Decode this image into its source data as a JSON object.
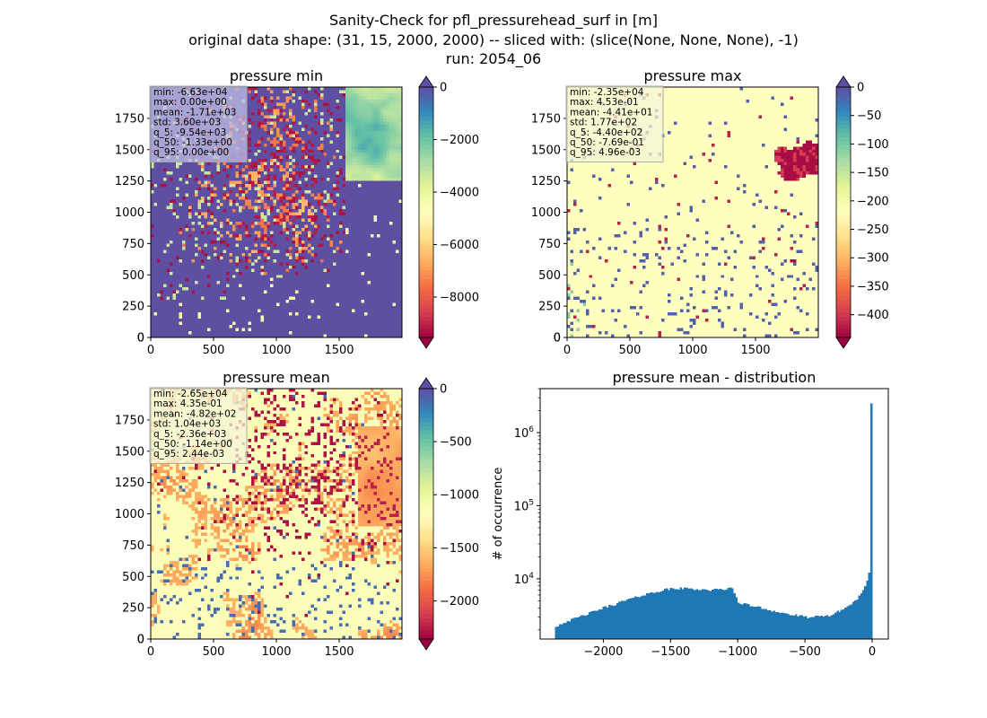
{
  "suptitle": [
    "Sanity-Check for pfl_pressurehead_surf in [m]",
    "original data shape: (31, 15, 2000, 2000) -- sliced with: (slice(None, None, None), -1)",
    "run: 2054_06"
  ],
  "chart_data": [
    {
      "type": "heatmap",
      "title": "pressure min",
      "xlim": [
        0,
        2000
      ],
      "ylim": [
        0,
        2000
      ],
      "xticks": [
        0,
        500,
        1000,
        1500
      ],
      "yticks": [
        0,
        250,
        500,
        750,
        1000,
        1250,
        1500,
        1750
      ],
      "colorbar": {
        "cmap": "Spectral",
        "vmin": -9540,
        "vmax": 0,
        "ticks": [
          0,
          -2000,
          -4000,
          -6000,
          -8000
        ],
        "tick_labels": [
          "0",
          "−2000",
          "−4000",
          "−6000",
          "−8000"
        ],
        "extend": "both"
      },
      "stats": [
        "min: -6.63e+04",
        "max: 0.00e+00",
        "mean: -1.71e+03",
        "std: 3.60e+03",
        "q_5: -9.54e+03",
        "q_50: -1.33e+00",
        "q_95: 0.00e+00"
      ],
      "stats_box_color": "#bfbfe6",
      "grid": false
    },
    {
      "type": "heatmap",
      "title": "pressure max",
      "xlim": [
        0,
        2000
      ],
      "ylim": [
        0,
        2000
      ],
      "xticks": [
        0,
        500,
        1000,
        1500
      ],
      "yticks": [
        0,
        250,
        500,
        750,
        1000,
        1250,
        1500,
        1750
      ],
      "colorbar": {
        "cmap": "Spectral",
        "vmin": -440,
        "vmax": 0,
        "ticks": [
          0,
          -50,
          -100,
          -150,
          -200,
          -250,
          -300,
          -350,
          -400
        ],
        "tick_labels": [
          "0",
          "−50",
          "−100",
          "−150",
          "−200",
          "−250",
          "−300",
          "−350",
          "−400"
        ],
        "extend": "both"
      },
      "stats": [
        "min: -2.35e+04",
        "max: 4.53e-01",
        "mean: -4.41e+01",
        "std: 1.77e+02",
        "q_5: -4.40e+02",
        "q_50: -7.69e-01",
        "q_95: 4.96e-03"
      ],
      "stats_box_color": "#f4f4d8",
      "grid": false
    },
    {
      "type": "heatmap",
      "title": "pressure mean",
      "xlim": [
        0,
        2000
      ],
      "ylim": [
        0,
        2000
      ],
      "xticks": [
        0,
        500,
        1000,
        1500
      ],
      "yticks": [
        0,
        250,
        500,
        750,
        1000,
        1250,
        1500,
        1750
      ],
      "colorbar": {
        "cmap": "Spectral",
        "vmin": -2360,
        "vmax": 0,
        "ticks": [
          0,
          -500,
          -1000,
          -1500,
          -2000
        ],
        "tick_labels": [
          "0",
          "−500",
          "−1000",
          "−1500",
          "−2000"
        ],
        "extend": "both"
      },
      "stats": [
        "min: -2.65e+04",
        "max: 4.35e-01",
        "mean: -4.82e+02",
        "std: 1.04e+03",
        "q_5: -2.36e+03",
        "q_50: -1.14e+00",
        "q_95: 2.44e-03"
      ],
      "stats_box_color": "#f4f4d8",
      "grid": false
    },
    {
      "type": "bar",
      "subtype": "histogram",
      "title": "pressure mean - distribution",
      "xlabel": "",
      "ylabel": "# of occurrence",
      "xlim": [
        -2470,
        120
      ],
      "xticks": [
        -2000,
        -1500,
        -1000,
        -500,
        0
      ],
      "xtick_labels": [
        "−2000",
        "−1500",
        "−1000",
        "−500",
        "0"
      ],
      "yscale": "log",
      "ylim": [
        1500,
        4000000
      ],
      "yticks": [
        10000,
        100000,
        1000000
      ],
      "ytick_labels": [
        "10^4",
        "10^5",
        "10^6"
      ],
      "bar_color": "#1f77b4",
      "grid": false,
      "bins": {
        "x": [
          -2360,
          -2300,
          -2200,
          -2100,
          -2000,
          -1900,
          -1800,
          -1700,
          -1600,
          -1500,
          -1400,
          -1300,
          -1200,
          -1100,
          -1050,
          -1020,
          -1000,
          -950,
          -900,
          -850,
          -800,
          -700,
          -600,
          -500,
          -400,
          -300,
          -200,
          -150,
          -100,
          -60,
          -40,
          -20,
          -10,
          -5,
          0
        ],
        "y": [
          2200,
          2500,
          2900,
          3400,
          4000,
          4600,
          5300,
          6000,
          6700,
          7300,
          7400,
          7200,
          7000,
          7200,
          7600,
          6200,
          4800,
          4500,
          4300,
          4100,
          3900,
          3500,
          3200,
          3000,
          3000,
          3200,
          4000,
          4600,
          5600,
          7000,
          9000,
          12000,
          18000,
          40000,
          2500000
        ]
      }
    }
  ]
}
